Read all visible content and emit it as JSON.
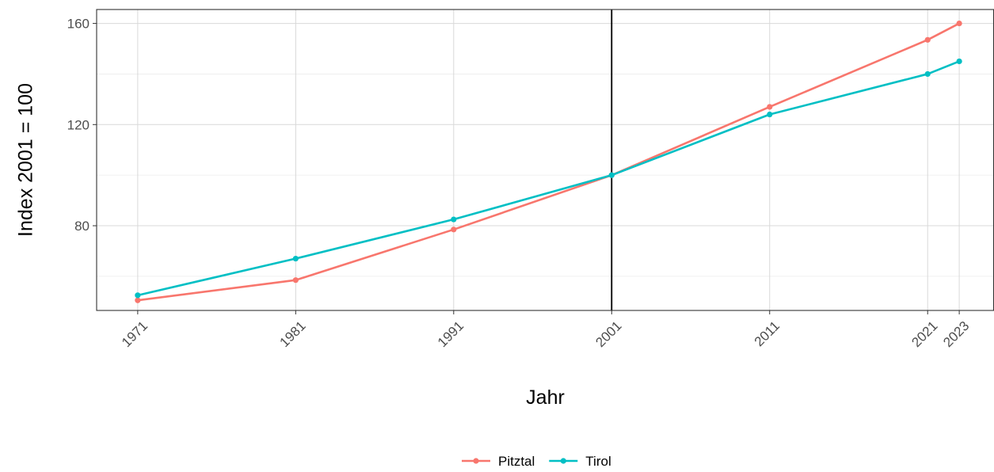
{
  "chart_data": {
    "type": "line",
    "title": "",
    "xlabel": "Jahr",
    "ylabel": "Index 2001 = 100",
    "x": [
      1971,
      1981,
      1991,
      2001,
      2011,
      2021,
      2023
    ],
    "x_tick_labels": [
      "1971",
      "1981",
      "1991",
      "2001",
      "2011",
      "2021",
      "2023"
    ],
    "y_ticks": [
      80,
      120,
      160
    ],
    "y_tick_labels": [
      "80",
      "120",
      "160"
    ],
    "xlim": [
      1968.4,
      2025.2
    ],
    "ylim": [
      46.5,
      165.5
    ],
    "reference_line_x": 2001,
    "grid": true,
    "legend_position": "bottom",
    "series": [
      {
        "name": "Pitztal",
        "color": "#f8766d",
        "values": [
          50.5,
          58.5,
          78.5,
          100,
          127,
          153.5,
          160
        ]
      },
      {
        "name": "Tirol",
        "color": "#00bfc4",
        "values": [
          52.5,
          67,
          82.5,
          100,
          124,
          140,
          145
        ]
      }
    ]
  }
}
